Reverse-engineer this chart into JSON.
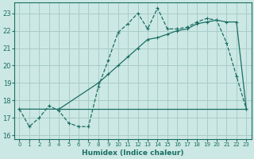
{
  "bg_color": "#cce8e4",
  "grid_color": "#a8ccc8",
  "line_color": "#1a6e64",
  "xlabel": "Humidex (Indice chaleur)",
  "ylim": [
    15.8,
    23.6
  ],
  "xlim": [
    -0.5,
    23.5
  ],
  "yticks": [
    16,
    17,
    18,
    19,
    20,
    21,
    22,
    23
  ],
  "xticks": [
    0,
    1,
    2,
    3,
    4,
    5,
    6,
    7,
    8,
    9,
    10,
    11,
    12,
    13,
    14,
    15,
    16,
    17,
    18,
    19,
    20,
    21,
    22,
    23
  ],
  "line1_x": [
    0,
    1,
    2,
    3,
    4,
    5,
    6,
    7,
    8,
    9,
    10,
    11,
    12,
    13,
    14,
    15,
    16,
    17,
    18,
    19,
    20,
    21,
    22,
    23
  ],
  "line1_y": [
    17.5,
    16.5,
    17.0,
    17.7,
    17.4,
    16.7,
    16.5,
    16.5,
    18.8,
    20.3,
    21.9,
    22.4,
    23.0,
    22.1,
    23.3,
    22.1,
    22.1,
    22.2,
    22.5,
    22.7,
    22.6,
    21.3,
    19.4,
    17.5
  ],
  "line2_x": [
    0,
    4,
    8,
    9,
    10,
    11,
    12,
    13,
    14,
    15,
    16,
    17,
    18,
    19,
    20,
    21,
    22,
    23
  ],
  "line2_y": [
    17.5,
    17.5,
    19.0,
    19.5,
    20.0,
    20.5,
    21.0,
    21.5,
    21.6,
    21.8,
    22.0,
    22.1,
    22.4,
    22.5,
    22.6,
    22.5,
    22.5,
    17.5
  ],
  "line3_x": [
    4,
    19,
    23
  ],
  "line3_y": [
    17.5,
    17.5,
    17.5
  ]
}
